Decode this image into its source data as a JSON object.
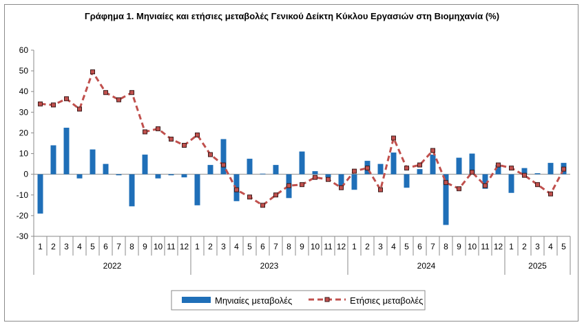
{
  "chart_data": {
    "type": "bar",
    "title": "Γράφημα 1. Μηνιαίες και ετήσιες μεταβολές  Γενικού Δείκτη Κύκλου Εργασιών στη Βιομηχανία (%)",
    "xlabel": "",
    "ylabel": "",
    "ylim": [
      -30,
      60
    ],
    "yticks": [
      -30,
      -20,
      -10,
      0,
      10,
      20,
      30,
      40,
      50,
      60
    ],
    "grid": false,
    "legend_position": "bottom-center",
    "years": [
      {
        "label": "2022",
        "months": 12
      },
      {
        "label": "2023",
        "months": 12
      },
      {
        "label": "2024",
        "months": 12
      },
      {
        "label": "2025",
        "months": 5
      }
    ],
    "categories": [
      "1",
      "2",
      "3",
      "4",
      "5",
      "6",
      "7",
      "8",
      "9",
      "10",
      "11",
      "12",
      "1",
      "2",
      "3",
      "4",
      "5",
      "6",
      "7",
      "8",
      "9",
      "10",
      "11",
      "12",
      "1",
      "2",
      "3",
      "4",
      "5",
      "6",
      "7",
      "8",
      "9",
      "10",
      "11",
      "12",
      "1",
      "2",
      "3",
      "4",
      "5"
    ],
    "series": [
      {
        "name": "Μηνιαίες μεταβολές",
        "kind": "bar",
        "color": "#1f6fb8",
        "values": [
          -19,
          14,
          22.5,
          -2,
          12,
          5,
          -0.5,
          -15.5,
          9.5,
          -2,
          -0.5,
          -1.5,
          -15,
          4.5,
          17,
          -13,
          7.5,
          0.3,
          4.5,
          -11.5,
          11,
          1.5,
          -1.5,
          -5.5,
          -7.5,
          6.5,
          5,
          10.5,
          -6.5,
          2.5,
          9.5,
          -24.5,
          8,
          10,
          -7,
          4.5,
          -9,
          3,
          0.5,
          5.5,
          5.5
        ]
      },
      {
        "name": "Ετήσιες μεταβολές",
        "kind": "line",
        "color": "#c0504d",
        "values": [
          34,
          33.5,
          36.5,
          31.5,
          49.5,
          39.5,
          36,
          39.5,
          20.5,
          22,
          17,
          14,
          19,
          9.5,
          4.5,
          -7.5,
          -11,
          -15,
          -10,
          -5.5,
          -5,
          -1.5,
          -2.5,
          -6.5,
          1.5,
          3,
          -7.5,
          17.5,
          3,
          4.5,
          11.5,
          -4,
          -7,
          1,
          -5.5,
          4.5,
          3,
          -0.5,
          -5,
          -9.5,
          2.5
        ]
      }
    ]
  }
}
